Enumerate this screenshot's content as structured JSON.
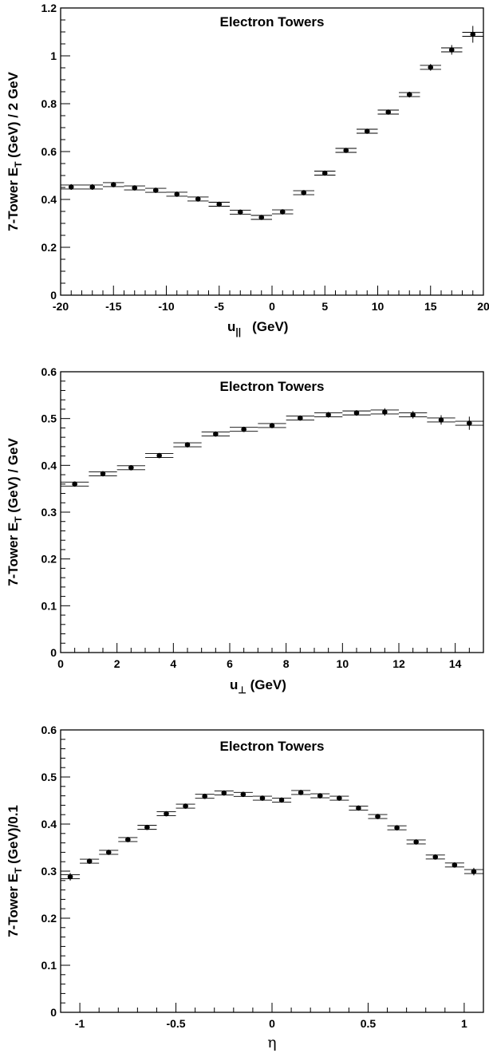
{
  "chart_data": [
    {
      "type": "scatter",
      "title": "Electron Towers",
      "xlabel": "u",
      "xlabel_sub": "||",
      "xlabel_unit": "(GeV)",
      "ylabel": "7-Tower E",
      "ylabel_sub": "T",
      "ylabel_unit": " (GeV) / 2 GeV",
      "xlim": [
        -20,
        20
      ],
      "ylim": [
        0,
        1.2
      ],
      "xticks": [
        -20,
        -15,
        -10,
        -5,
        0,
        5,
        10,
        15,
        20
      ],
      "yticks": [
        0,
        0.2,
        0.4,
        0.6,
        0.8,
        1,
        1.2
      ],
      "xtick_labels": [
        "-20",
        "-15",
        "-10",
        "-5",
        "0",
        "5",
        "10",
        "15",
        "20"
      ],
      "ytick_labels": [
        "0",
        "0.2",
        "0.4",
        "0.6",
        "0.8",
        "1",
        "1.2"
      ],
      "x_minor_step": 1,
      "y_minor_step": 0.05,
      "bin_halfwidth": 1,
      "x": [
        -19,
        -17,
        -15,
        -13,
        -11,
        -9,
        -7,
        -5,
        -3,
        -1,
        1,
        3,
        5,
        7,
        9,
        11,
        13,
        15,
        17,
        19
      ],
      "y": [
        0.452,
        0.452,
        0.462,
        0.448,
        0.438,
        0.422,
        0.402,
        0.38,
        0.347,
        0.325,
        0.348,
        0.428,
        0.51,
        0.605,
        0.685,
        0.765,
        0.838,
        0.952,
        1.025,
        1.09
      ],
      "yerr": [
        0.012,
        0.012,
        0.008,
        0.007,
        0.007,
        0.007,
        0.007,
        0.007,
        0.007,
        0.007,
        0.007,
        0.007,
        0.007,
        0.008,
        0.009,
        0.01,
        0.012,
        0.014,
        0.02,
        0.035
      ],
      "grid": false
    },
    {
      "type": "scatter",
      "title": "Electron Towers",
      "xlabel": "u",
      "xlabel_sub": "⊥",
      "xlabel_unit": " (GeV)",
      "ylabel": "7-Tower E",
      "ylabel_sub": "T",
      "ylabel_unit": " (GeV) / GeV",
      "xlim": [
        0,
        15
      ],
      "ylim": [
        0,
        0.6
      ],
      "xticks": [
        0,
        2,
        4,
        6,
        8,
        10,
        12,
        14
      ],
      "yticks": [
        0,
        0.1,
        0.2,
        0.3,
        0.4,
        0.5,
        0.6
      ],
      "xtick_labels": [
        "0",
        "2",
        "4",
        "6",
        "8",
        "10",
        "12",
        "14"
      ],
      "ytick_labels": [
        "0",
        "0.1",
        "0.2",
        "0.3",
        "0.4",
        "0.5",
        "0.6"
      ],
      "x_minor_step": 0.5,
      "y_minor_step": 0.02,
      "bin_halfwidth": 0.5,
      "x": [
        0.5,
        1.5,
        2.5,
        3.5,
        4.5,
        5.5,
        6.5,
        7.5,
        8.5,
        9.5,
        10.5,
        11.5,
        12.5,
        13.5,
        14.5
      ],
      "y": [
        0.36,
        0.382,
        0.395,
        0.421,
        0.444,
        0.467,
        0.477,
        0.485,
        0.501,
        0.508,
        0.512,
        0.514,
        0.508,
        0.497,
        0.49
      ],
      "yerr": [
        0.004,
        0.004,
        0.004,
        0.004,
        0.004,
        0.004,
        0.004,
        0.005,
        0.005,
        0.006,
        0.006,
        0.008,
        0.008,
        0.01,
        0.014
      ],
      "grid": false
    },
    {
      "type": "scatter",
      "title": "Electron Towers",
      "xlabel": "η",
      "xlabel_sub": "",
      "xlabel_unit": "",
      "ylabel": "7-Tower E",
      "ylabel_sub": "T",
      "ylabel_unit": " (GeV)/0.1",
      "xlim": [
        -1.1,
        1.1
      ],
      "ylim": [
        0,
        0.6
      ],
      "xticks": [
        -1,
        -0.5,
        0,
        0.5,
        1
      ],
      "yticks": [
        0,
        0.1,
        0.2,
        0.3,
        0.4,
        0.5,
        0.6
      ],
      "xtick_labels": [
        "-1",
        "-0.5",
        "0",
        "0.5",
        "1"
      ],
      "ytick_labels": [
        "0",
        "0.1",
        "0.2",
        "0.3",
        "0.4",
        "0.5",
        "0.6"
      ],
      "x_minor_step": 0.1,
      "y_minor_step": 0.02,
      "bin_halfwidth": 0.05,
      "x": [
        -1.05,
        -0.95,
        -0.85,
        -0.75,
        -0.65,
        -0.55,
        -0.45,
        -0.35,
        -0.25,
        -0.15,
        -0.05,
        0.05,
        0.15,
        0.25,
        0.35,
        0.45,
        0.55,
        0.65,
        0.75,
        0.85,
        0.95,
        1.05
      ],
      "y": [
        0.288,
        0.321,
        0.34,
        0.367,
        0.393,
        0.422,
        0.438,
        0.459,
        0.466,
        0.463,
        0.455,
        0.451,
        0.467,
        0.46,
        0.455,
        0.434,
        0.416,
        0.392,
        0.362,
        0.33,
        0.313,
        0.299
      ],
      "yerr": [
        0.008,
        0.005,
        0.004,
        0.004,
        0.004,
        0.004,
        0.004,
        0.004,
        0.004,
        0.004,
        0.004,
        0.004,
        0.004,
        0.004,
        0.004,
        0.004,
        0.004,
        0.004,
        0.004,
        0.005,
        0.005,
        0.008
      ],
      "grid": false
    }
  ]
}
